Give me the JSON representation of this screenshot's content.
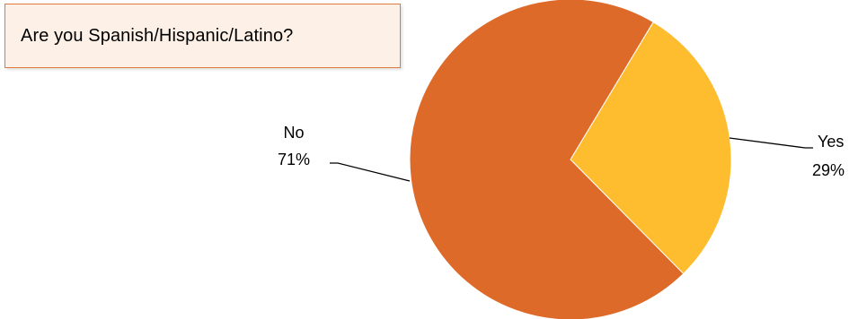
{
  "question": {
    "text": "Are you Spanish/Hispanic/Latino?"
  },
  "colors": {
    "yes": "#fdbd2f",
    "no": "#de6a29",
    "box_border": "#e07a3c",
    "box_fill": "#fdf1e7"
  },
  "chart_data": {
    "type": "pie",
    "title": "Are you Spanish/Hispanic/Latino?",
    "start_angle_deg": 31,
    "direction": "clockwise",
    "slices": [
      {
        "label": "Yes",
        "value": 29,
        "pct_label": "29%",
        "color": "#fdbd2f"
      },
      {
        "label": "No",
        "value": 71,
        "pct_label": "71%",
        "color": "#de6a29"
      }
    ],
    "legend": "none",
    "label_style": "outside with leader lines"
  }
}
